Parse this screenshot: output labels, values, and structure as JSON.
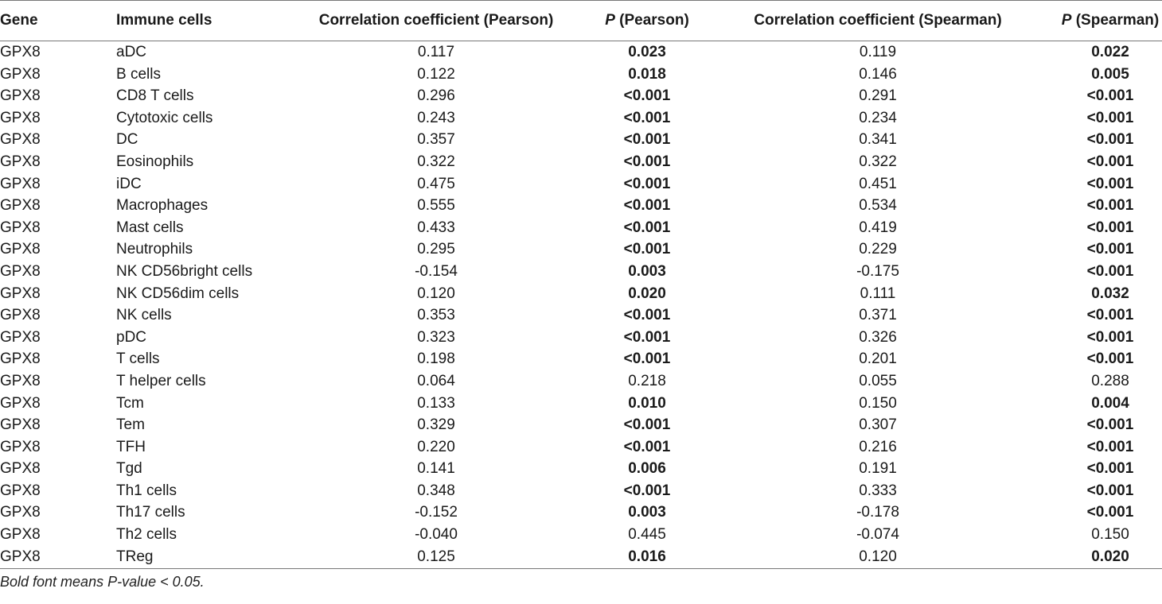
{
  "table": {
    "headers": {
      "gene": "Gene",
      "immune_cells": "Immune cells",
      "corr_pearson": "Correlation coefficient (Pearson)",
      "p_pearson_italic": "P",
      "p_pearson_rest": " (Pearson)",
      "corr_spearman": "Correlation coefficient (Spearman)",
      "p_spearman_italic": "P",
      "p_spearman_rest": " (Spearman)"
    },
    "rows": [
      {
        "gene": "GPX8",
        "cell": "aDC",
        "r_pearson": "0.117",
        "p_pearson": "0.023",
        "p_pearson_sig": true,
        "r_spearman": "0.119",
        "p_spearman": "0.022",
        "p_spearman_sig": true
      },
      {
        "gene": "GPX8",
        "cell": "B cells",
        "r_pearson": "0.122",
        "p_pearson": "0.018",
        "p_pearson_sig": true,
        "r_spearman": "0.146",
        "p_spearman": "0.005",
        "p_spearman_sig": true
      },
      {
        "gene": "GPX8",
        "cell": "CD8 T cells",
        "r_pearson": "0.296",
        "p_pearson": "<0.001",
        "p_pearson_sig": true,
        "r_spearman": "0.291",
        "p_spearman": "<0.001",
        "p_spearman_sig": true
      },
      {
        "gene": "GPX8",
        "cell": "Cytotoxic cells",
        "r_pearson": "0.243",
        "p_pearson": "<0.001",
        "p_pearson_sig": true,
        "r_spearman": "0.234",
        "p_spearman": "<0.001",
        "p_spearman_sig": true
      },
      {
        "gene": "GPX8",
        "cell": "DC",
        "r_pearson": "0.357",
        "p_pearson": "<0.001",
        "p_pearson_sig": true,
        "r_spearman": "0.341",
        "p_spearman": "<0.001",
        "p_spearman_sig": true
      },
      {
        "gene": "GPX8",
        "cell": "Eosinophils",
        "r_pearson": "0.322",
        "p_pearson": "<0.001",
        "p_pearson_sig": true,
        "r_spearman": "0.322",
        "p_spearman": "<0.001",
        "p_spearman_sig": true
      },
      {
        "gene": "GPX8",
        "cell": "iDC",
        "r_pearson": "0.475",
        "p_pearson": "<0.001",
        "p_pearson_sig": true,
        "r_spearman": "0.451",
        "p_spearman": "<0.001",
        "p_spearman_sig": true
      },
      {
        "gene": "GPX8",
        "cell": "Macrophages",
        "r_pearson": "0.555",
        "p_pearson": "<0.001",
        "p_pearson_sig": true,
        "r_spearman": "0.534",
        "p_spearman": "<0.001",
        "p_spearman_sig": true
      },
      {
        "gene": "GPX8",
        "cell": "Mast cells",
        "r_pearson": "0.433",
        "p_pearson": "<0.001",
        "p_pearson_sig": true,
        "r_spearman": "0.419",
        "p_spearman": "<0.001",
        "p_spearman_sig": true
      },
      {
        "gene": "GPX8",
        "cell": "Neutrophils",
        "r_pearson": "0.295",
        "p_pearson": "<0.001",
        "p_pearson_sig": true,
        "r_spearman": "0.229",
        "p_spearman": "<0.001",
        "p_spearman_sig": true
      },
      {
        "gene": "GPX8",
        "cell": "NK CD56bright cells",
        "r_pearson": "-0.154",
        "p_pearson": "0.003",
        "p_pearson_sig": true,
        "r_spearman": "-0.175",
        "p_spearman": "<0.001",
        "p_spearman_sig": true
      },
      {
        "gene": "GPX8",
        "cell": "NK CD56dim cells",
        "r_pearson": "0.120",
        "p_pearson": "0.020",
        "p_pearson_sig": true,
        "r_spearman": "0.111",
        "p_spearman": "0.032",
        "p_spearman_sig": true
      },
      {
        "gene": "GPX8",
        "cell": "NK cells",
        "r_pearson": "0.353",
        "p_pearson": "<0.001",
        "p_pearson_sig": true,
        "r_spearman": "0.371",
        "p_spearman": "<0.001",
        "p_spearman_sig": true
      },
      {
        "gene": "GPX8",
        "cell": "pDC",
        "r_pearson": "0.323",
        "p_pearson": "<0.001",
        "p_pearson_sig": true,
        "r_spearman": "0.326",
        "p_spearman": "<0.001",
        "p_spearman_sig": true
      },
      {
        "gene": "GPX8",
        "cell": "T cells",
        "r_pearson": "0.198",
        "p_pearson": "<0.001",
        "p_pearson_sig": true,
        "r_spearman": "0.201",
        "p_spearman": "<0.001",
        "p_spearman_sig": true
      },
      {
        "gene": "GPX8",
        "cell": "T helper cells",
        "r_pearson": "0.064",
        "p_pearson": "0.218",
        "p_pearson_sig": false,
        "r_spearman": "0.055",
        "p_spearman": "0.288",
        "p_spearman_sig": false
      },
      {
        "gene": "GPX8",
        "cell": "Tcm",
        "r_pearson": "0.133",
        "p_pearson": "0.010",
        "p_pearson_sig": true,
        "r_spearman": "0.150",
        "p_spearman": "0.004",
        "p_spearman_sig": true
      },
      {
        "gene": "GPX8",
        "cell": "Tem",
        "r_pearson": "0.329",
        "p_pearson": "<0.001",
        "p_pearson_sig": true,
        "r_spearman": "0.307",
        "p_spearman": "<0.001",
        "p_spearman_sig": true
      },
      {
        "gene": "GPX8",
        "cell": "TFH",
        "r_pearson": "0.220",
        "p_pearson": "<0.001",
        "p_pearson_sig": true,
        "r_spearman": "0.216",
        "p_spearman": "<0.001",
        "p_spearman_sig": true
      },
      {
        "gene": "GPX8",
        "cell": "Tgd",
        "r_pearson": "0.141",
        "p_pearson": "0.006",
        "p_pearson_sig": true,
        "r_spearman": "0.191",
        "p_spearman": "<0.001",
        "p_spearman_sig": true
      },
      {
        "gene": "GPX8",
        "cell": "Th1 cells",
        "r_pearson": "0.348",
        "p_pearson": "<0.001",
        "p_pearson_sig": true,
        "r_spearman": "0.333",
        "p_spearman": "<0.001",
        "p_spearman_sig": true
      },
      {
        "gene": "GPX8",
        "cell": "Th17 cells",
        "r_pearson": "-0.152",
        "p_pearson": "0.003",
        "p_pearson_sig": true,
        "r_spearman": "-0.178",
        "p_spearman": "<0.001",
        "p_spearman_sig": true
      },
      {
        "gene": "GPX8",
        "cell": "Th2 cells",
        "r_pearson": "-0.040",
        "p_pearson": "0.445",
        "p_pearson_sig": false,
        "r_spearman": "-0.074",
        "p_spearman": "0.150",
        "p_spearman_sig": false
      },
      {
        "gene": "GPX8",
        "cell": "TReg",
        "r_pearson": "0.125",
        "p_pearson": "0.016",
        "p_pearson_sig": true,
        "r_spearman": "0.120",
        "p_spearman": "0.020",
        "p_spearman_sig": true
      }
    ]
  },
  "footnote": "Bold font means P-value < 0.05."
}
